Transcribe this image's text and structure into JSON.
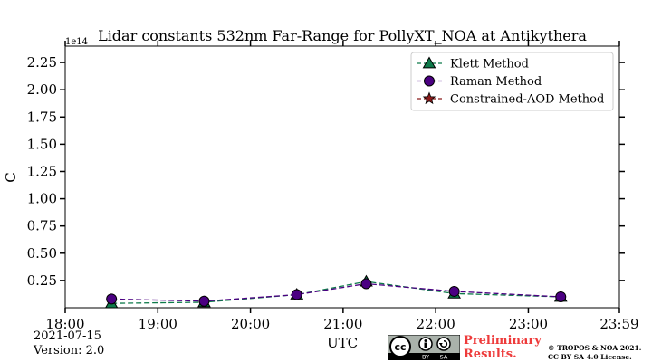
{
  "chart_data": {
    "type": "line",
    "title": "Lidar constants 532nm Far-Range for PollyXT_NOA at Antikythera",
    "xlabel": "UTC",
    "ylabel": "C",
    "y_multiplier_label": "1e14",
    "xlim_hours": [
      18.0,
      23.983
    ],
    "ylim": [
      0.0,
      2.4
    ],
    "x_ticks": [
      {
        "label": "18:00",
        "hour": 18.0
      },
      {
        "label": "19:00",
        "hour": 19.0
      },
      {
        "label": "20:00",
        "hour": 20.0
      },
      {
        "label": "21:00",
        "hour": 21.0
      },
      {
        "label": "22:00",
        "hour": 22.0
      },
      {
        "label": "23:00",
        "hour": 23.0
      },
      {
        "label": "23:59",
        "hour": 23.983
      }
    ],
    "y_ticks": [
      "0.25",
      "0.50",
      "0.75",
      "1.00",
      "1.25",
      "1.50",
      "1.75",
      "2.00",
      "2.25"
    ],
    "legend_position": "top-right",
    "series": [
      {
        "name": "Klett Method",
        "marker": "triangle",
        "color": "#0e7a4a",
        "x": [
          18.5,
          19.5,
          20.5,
          21.25,
          22.2,
          23.35
        ],
        "y": [
          0.04,
          0.05,
          0.12,
          0.24,
          0.13,
          0.1
        ]
      },
      {
        "name": "Raman Method",
        "marker": "circle",
        "color": "#4b0082",
        "x": [
          18.5,
          19.5,
          20.5,
          21.25,
          22.2,
          23.35
        ],
        "y": [
          0.08,
          0.06,
          0.12,
          0.22,
          0.15,
          0.1
        ]
      },
      {
        "name": "Constrained-AOD Method",
        "marker": "star",
        "color": "#8b1a1a",
        "x": [],
        "y": []
      }
    ]
  },
  "info": {
    "date": "2021-07-15",
    "version": "Version: 2.0",
    "license_badge_texts": [
      "cc",
      "BY",
      "SA"
    ],
    "preliminary_line1": "Preliminary",
    "preliminary_line2": "Results.",
    "copyright_line1": "© TROPOS & NOA 2021.",
    "copyright_line2": "CC BY SA 4.0 License."
  }
}
